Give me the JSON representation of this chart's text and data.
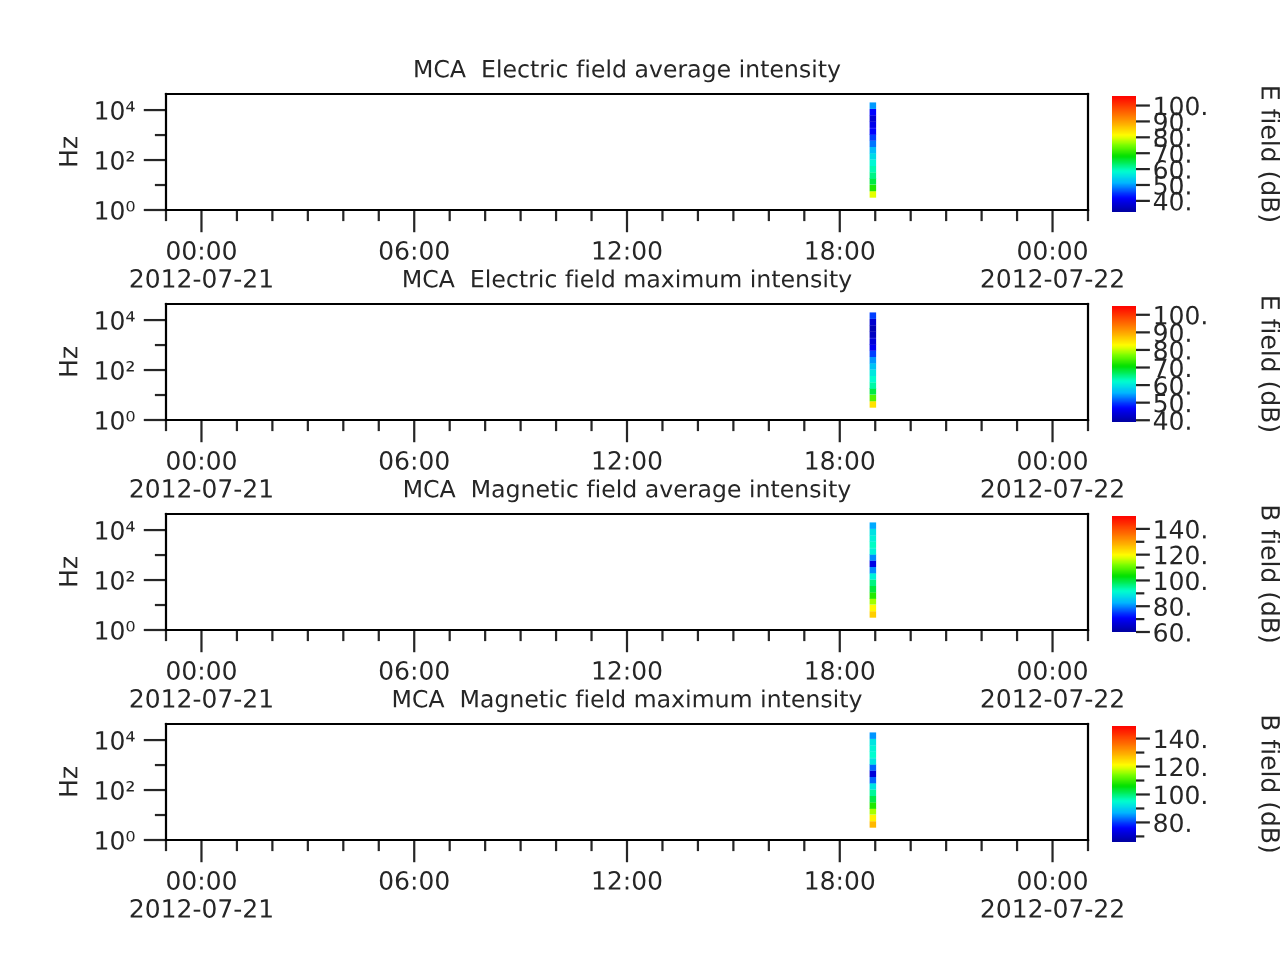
{
  "chart_data": [
    {
      "type": "scatter",
      "title": "MCA  Electric field average intensity",
      "ylabel": "Hz",
      "clabel": "E field (dB)",
      "x": [
        "2012-07-21T18:56",
        "2012-07-21T18:56",
        "2012-07-21T18:56",
        "2012-07-21T18:56",
        "2012-07-21T18:56",
        "2012-07-21T18:56",
        "2012-07-21T18:56",
        "2012-07-21T18:56",
        "2012-07-21T18:56",
        "2012-07-21T18:56",
        "2012-07-21T18:56",
        "2012-07-21T18:56",
        "2012-07-21T18:56",
        "2012-07-21T18:56",
        "2012-07-21T18:56"
      ],
      "values": [
        4.2,
        7.6,
        14,
        24,
        43,
        78,
        140,
        250,
        450,
        800,
        1400,
        2600,
        4600,
        8200,
        15000
      ],
      "cvalues": [
        80,
        70,
        65,
        62,
        60,
        58,
        55,
        52,
        48,
        45,
        42,
        40,
        38,
        42,
        50
      ],
      "marker": "square",
      "log": "y",
      "xlim": [
        "2012-07-20T23:00",
        "2012-07-22T01:00"
      ],
      "xticks": [
        {
          "value": "2012-07-20T23:00",
          "label": null
        },
        {
          "value": "2012-07-21T00:00",
          "label": "00:00\n2012-07-21"
        },
        {
          "value": "2012-07-21T01:00",
          "label": null
        },
        {
          "value": "2012-07-21T02:00",
          "label": null
        },
        {
          "value": "2012-07-21T03:00",
          "label": null
        },
        {
          "value": "2012-07-21T04:00",
          "label": null
        },
        {
          "value": "2012-07-21T05:00",
          "label": null
        },
        {
          "value": "2012-07-21T06:00",
          "label": "06:00"
        },
        {
          "value": "2012-07-21T07:00",
          "label": null
        },
        {
          "value": "2012-07-21T08:00",
          "label": null
        },
        {
          "value": "2012-07-21T09:00",
          "label": null
        },
        {
          "value": "2012-07-21T10:00",
          "label": null
        },
        {
          "value": "2012-07-21T11:00",
          "label": null
        },
        {
          "value": "2012-07-21T12:00",
          "label": "12:00"
        },
        {
          "value": "2012-07-21T13:00",
          "label": null
        },
        {
          "value": "2012-07-21T14:00",
          "label": null
        },
        {
          "value": "2012-07-21T15:00",
          "label": null
        },
        {
          "value": "2012-07-21T16:00",
          "label": null
        },
        {
          "value": "2012-07-21T17:00",
          "label": null
        },
        {
          "value": "2012-07-21T18:00",
          "label": "18:00"
        },
        {
          "value": "2012-07-21T19:00",
          "label": null
        },
        {
          "value": "2012-07-21T20:00",
          "label": null
        },
        {
          "value": "2012-07-21T21:00",
          "label": null
        },
        {
          "value": "2012-07-21T22:00",
          "label": null
        },
        {
          "value": "2012-07-21T23:00",
          "label": null
        },
        {
          "value": "2012-07-22T00:00",
          "label": "00:00\n2012-07-22"
        },
        {
          "value": "2012-07-22T01:00",
          "label": null
        }
      ],
      "ylim": [
        1,
        44000
      ],
      "yticks": [
        {
          "value": 1,
          "label": "10⁰"
        },
        {
          "value": 10,
          "label": null
        },
        {
          "value": 100,
          "label": "10²"
        },
        {
          "value": 1000,
          "label": null
        },
        {
          "value": 10000,
          "label": "10⁴"
        }
      ],
      "clim": [
        33,
        106
      ],
      "cticks": [
        {
          "value": 40,
          "label": "40."
        },
        {
          "value": 50,
          "label": "50."
        },
        {
          "value": 60,
          "label": "60."
        },
        {
          "value": 70,
          "label": "70."
        },
        {
          "value": 80,
          "label": "80."
        },
        {
          "value": 90,
          "label": "90."
        },
        {
          "value": 100,
          "label": "100."
        }
      ]
    },
    {
      "type": "scatter",
      "title": "MCA  Electric field maximum intensity",
      "ylabel": "Hz",
      "clabel": "E field (dB)",
      "x": [
        "2012-07-21T18:56",
        "2012-07-21T18:56",
        "2012-07-21T18:56",
        "2012-07-21T18:56",
        "2012-07-21T18:56",
        "2012-07-21T18:56",
        "2012-07-21T18:56",
        "2012-07-21T18:56",
        "2012-07-21T18:56",
        "2012-07-21T18:56",
        "2012-07-21T18:56",
        "2012-07-21T18:56",
        "2012-07-21T18:56",
        "2012-07-21T18:56",
        "2012-07-21T18:56"
      ],
      "values": [
        4.2,
        7.6,
        14,
        24,
        43,
        78,
        140,
        250,
        450,
        800,
        1400,
        2600,
        4600,
        8200,
        15000
      ],
      "cvalues": [
        85,
        75,
        68,
        64,
        62,
        60,
        57,
        54,
        50,
        46,
        44,
        42,
        41,
        43,
        50
      ],
      "marker": "square",
      "log": "y",
      "xlim": [
        "2012-07-20T23:00",
        "2012-07-22T01:00"
      ],
      "xticks": [
        {
          "value": "2012-07-20T23:00",
          "label": null
        },
        {
          "value": "2012-07-21T00:00",
          "label": "00:00\n2012-07-21"
        },
        {
          "value": "2012-07-21T01:00",
          "label": null
        },
        {
          "value": "2012-07-21T02:00",
          "label": null
        },
        {
          "value": "2012-07-21T03:00",
          "label": null
        },
        {
          "value": "2012-07-21T04:00",
          "label": null
        },
        {
          "value": "2012-07-21T05:00",
          "label": null
        },
        {
          "value": "2012-07-21T06:00",
          "label": "06:00"
        },
        {
          "value": "2012-07-21T07:00",
          "label": null
        },
        {
          "value": "2012-07-21T08:00",
          "label": null
        },
        {
          "value": "2012-07-21T09:00",
          "label": null
        },
        {
          "value": "2012-07-21T10:00",
          "label": null
        },
        {
          "value": "2012-07-21T11:00",
          "label": null
        },
        {
          "value": "2012-07-21T12:00",
          "label": "12:00"
        },
        {
          "value": "2012-07-21T13:00",
          "label": null
        },
        {
          "value": "2012-07-21T14:00",
          "label": null
        },
        {
          "value": "2012-07-21T15:00",
          "label": null
        },
        {
          "value": "2012-07-21T16:00",
          "label": null
        },
        {
          "value": "2012-07-21T17:00",
          "label": null
        },
        {
          "value": "2012-07-21T18:00",
          "label": "18:00"
        },
        {
          "value": "2012-07-21T19:00",
          "label": null
        },
        {
          "value": "2012-07-21T20:00",
          "label": null
        },
        {
          "value": "2012-07-21T21:00",
          "label": null
        },
        {
          "value": "2012-07-21T22:00",
          "label": null
        },
        {
          "value": "2012-07-21T23:00",
          "label": null
        },
        {
          "value": "2012-07-22T00:00",
          "label": "00:00\n2012-07-22"
        },
        {
          "value": "2012-07-22T01:00",
          "label": null
        }
      ],
      "ylim": [
        1,
        44000
      ],
      "yticks": [
        {
          "value": 1,
          "label": "10⁰"
        },
        {
          "value": 10,
          "label": null
        },
        {
          "value": 100,
          "label": "10²"
        },
        {
          "value": 1000,
          "label": null
        },
        {
          "value": 10000,
          "label": "10⁴"
        }
      ],
      "clim": [
        39,
        105
      ],
      "cticks": [
        {
          "value": 40,
          "label": "40."
        },
        {
          "value": 50,
          "label": "50."
        },
        {
          "value": 60,
          "label": "60."
        },
        {
          "value": 70,
          "label": "70."
        },
        {
          "value": 80,
          "label": "80."
        },
        {
          "value": 90,
          "label": "90."
        },
        {
          "value": 100,
          "label": "100."
        }
      ]
    },
    {
      "type": "scatter",
      "title": "MCA  Magnetic field average intensity",
      "ylabel": "Hz",
      "clabel": "B field (dB)",
      "x": [
        "2012-07-21T18:56",
        "2012-07-21T18:56",
        "2012-07-21T18:56",
        "2012-07-21T18:56",
        "2012-07-21T18:56",
        "2012-07-21T18:56",
        "2012-07-21T18:56",
        "2012-07-21T18:56",
        "2012-07-21T18:56",
        "2012-07-21T18:56",
        "2012-07-21T18:56",
        "2012-07-21T18:56",
        "2012-07-21T18:56",
        "2012-07-21T18:56",
        "2012-07-21T18:56"
      ],
      "values": [
        4.2,
        7.6,
        14,
        24,
        43,
        78,
        140,
        250,
        450,
        800,
        1400,
        2600,
        4600,
        8200,
        15000
      ],
      "cvalues": [
        125,
        120,
        114,
        106,
        100,
        96,
        90,
        80,
        68,
        80,
        90,
        92,
        90,
        88,
        82
      ],
      "marker": "square",
      "log": "y",
      "xlim": [
        "2012-07-20T23:00",
        "2012-07-22T01:00"
      ],
      "xticks": [
        {
          "value": "2012-07-20T23:00",
          "label": null
        },
        {
          "value": "2012-07-21T00:00",
          "label": "00:00\n2012-07-21"
        },
        {
          "value": "2012-07-21T01:00",
          "label": null
        },
        {
          "value": "2012-07-21T02:00",
          "label": null
        },
        {
          "value": "2012-07-21T03:00",
          "label": null
        },
        {
          "value": "2012-07-21T04:00",
          "label": null
        },
        {
          "value": "2012-07-21T05:00",
          "label": null
        },
        {
          "value": "2012-07-21T06:00",
          "label": "06:00"
        },
        {
          "value": "2012-07-21T07:00",
          "label": null
        },
        {
          "value": "2012-07-21T08:00",
          "label": null
        },
        {
          "value": "2012-07-21T09:00",
          "label": null
        },
        {
          "value": "2012-07-21T10:00",
          "label": null
        },
        {
          "value": "2012-07-21T11:00",
          "label": null
        },
        {
          "value": "2012-07-21T12:00",
          "label": "12:00"
        },
        {
          "value": "2012-07-21T13:00",
          "label": null
        },
        {
          "value": "2012-07-21T14:00",
          "label": null
        },
        {
          "value": "2012-07-21T15:00",
          "label": null
        },
        {
          "value": "2012-07-21T16:00",
          "label": null
        },
        {
          "value": "2012-07-21T17:00",
          "label": null
        },
        {
          "value": "2012-07-21T18:00",
          "label": "18:00"
        },
        {
          "value": "2012-07-21T19:00",
          "label": null
        },
        {
          "value": "2012-07-21T20:00",
          "label": null
        },
        {
          "value": "2012-07-21T21:00",
          "label": null
        },
        {
          "value": "2012-07-21T22:00",
          "label": null
        },
        {
          "value": "2012-07-21T23:00",
          "label": null
        },
        {
          "value": "2012-07-22T00:00",
          "label": "00:00\n2012-07-22"
        },
        {
          "value": "2012-07-22T01:00",
          "label": null
        }
      ],
      "ylim": [
        1,
        44000
      ],
      "yticks": [
        {
          "value": 1,
          "label": "10⁰"
        },
        {
          "value": 10,
          "label": null
        },
        {
          "value": 100,
          "label": "10²"
        },
        {
          "value": 1000,
          "label": null
        },
        {
          "value": 10000,
          "label": "10⁴"
        }
      ],
      "clim": [
        60,
        150
      ],
      "cticks": [
        {
          "value": 60,
          "label": "60."
        },
        {
          "value": 70,
          "label": null
        },
        {
          "value": 80,
          "label": "80."
        },
        {
          "value": 90,
          "label": null
        },
        {
          "value": 100,
          "label": "100."
        },
        {
          "value": 110,
          "label": null
        },
        {
          "value": 120,
          "label": "120."
        },
        {
          "value": 130,
          "label": null
        },
        {
          "value": 140,
          "label": "140."
        }
      ]
    },
    {
      "type": "scatter",
      "title": "MCA  Magnetic field maximum intensity",
      "ylabel": "Hz",
      "clabel": "B field (dB)",
      "x": [
        "2012-07-21T18:56",
        "2012-07-21T18:56",
        "2012-07-21T18:56",
        "2012-07-21T18:56",
        "2012-07-21T18:56",
        "2012-07-21T18:56",
        "2012-07-21T18:56",
        "2012-07-21T18:56",
        "2012-07-21T18:56",
        "2012-07-21T18:56",
        "2012-07-21T18:56",
        "2012-07-21T18:56",
        "2012-07-21T18:56",
        "2012-07-21T18:56",
        "2012-07-21T18:56"
      ],
      "values": [
        4.2,
        7.6,
        14,
        24,
        43,
        78,
        140,
        250,
        450,
        800,
        1400,
        2600,
        4600,
        8200,
        15000
      ],
      "cvalues": [
        128,
        122,
        116,
        108,
        102,
        98,
        92,
        82,
        72,
        82,
        92,
        95,
        94,
        92,
        85
      ],
      "marker": "square",
      "log": "y",
      "xlim": [
        "2012-07-20T23:00",
        "2012-07-22T01:00"
      ],
      "xticks": [
        {
          "value": "2012-07-20T23:00",
          "label": null
        },
        {
          "value": "2012-07-21T00:00",
          "label": "00:00\n2012-07-21"
        },
        {
          "value": "2012-07-21T01:00",
          "label": null
        },
        {
          "value": "2012-07-21T02:00",
          "label": null
        },
        {
          "value": "2012-07-21T03:00",
          "label": null
        },
        {
          "value": "2012-07-21T04:00",
          "label": null
        },
        {
          "value": "2012-07-21T05:00",
          "label": null
        },
        {
          "value": "2012-07-21T06:00",
          "label": "06:00"
        },
        {
          "value": "2012-07-21T07:00",
          "label": null
        },
        {
          "value": "2012-07-21T08:00",
          "label": null
        },
        {
          "value": "2012-07-21T09:00",
          "label": null
        },
        {
          "value": "2012-07-21T10:00",
          "label": null
        },
        {
          "value": "2012-07-21T11:00",
          "label": null
        },
        {
          "value": "2012-07-21T12:00",
          "label": "12:00"
        },
        {
          "value": "2012-07-21T13:00",
          "label": null
        },
        {
          "value": "2012-07-21T14:00",
          "label": null
        },
        {
          "value": "2012-07-21T15:00",
          "label": null
        },
        {
          "value": "2012-07-21T16:00",
          "label": null
        },
        {
          "value": "2012-07-21T17:00",
          "label": null
        },
        {
          "value": "2012-07-21T18:00",
          "label": "18:00"
        },
        {
          "value": "2012-07-21T19:00",
          "label": null
        },
        {
          "value": "2012-07-21T20:00",
          "label": null
        },
        {
          "value": "2012-07-21T21:00",
          "label": null
        },
        {
          "value": "2012-07-21T22:00",
          "label": null
        },
        {
          "value": "2012-07-21T23:00",
          "label": null
        },
        {
          "value": "2012-07-22T00:00",
          "label": "00:00\n2012-07-22"
        },
        {
          "value": "2012-07-22T01:00",
          "label": null
        }
      ],
      "ylim": [
        1,
        44000
      ],
      "yticks": [
        {
          "value": 1,
          "label": "10⁰"
        },
        {
          "value": 10,
          "label": null
        },
        {
          "value": 100,
          "label": "10²"
        },
        {
          "value": 1000,
          "label": null
        },
        {
          "value": 10000,
          "label": "10⁴"
        }
      ],
      "clim": [
        66,
        149
      ],
      "cticks": [
        {
          "value": 70,
          "label": null
        },
        {
          "value": 80,
          "label": "80."
        },
        {
          "value": 90,
          "label": null
        },
        {
          "value": 100,
          "label": "100."
        },
        {
          "value": 110,
          "label": null
        },
        {
          "value": 120,
          "label": "120."
        },
        {
          "value": 130,
          "label": null
        },
        {
          "value": 140,
          "label": "140."
        }
      ]
    }
  ]
}
